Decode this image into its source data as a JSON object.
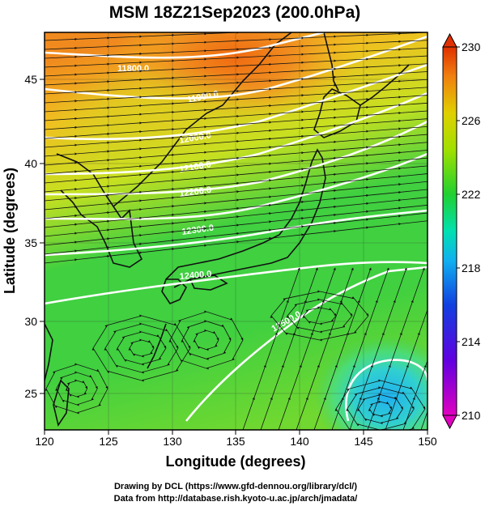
{
  "title": "MSM 18Z21Sep2023 (200.0hPa)",
  "xlabel": "Longitude (degrees)",
  "ylabel": "Latitude  (degrees)",
  "x_ticks": [
    "120",
    "125",
    "130",
    "135",
    "140",
    "145",
    "150"
  ],
  "y_ticks": [
    "25",
    "30",
    "35",
    "40",
    "45"
  ],
  "colorbar": {
    "ticks": [
      "230",
      "226",
      "222",
      "218",
      "214",
      "210"
    ],
    "range": [
      210,
      230
    ],
    "colors": [
      "#d000d0",
      "#2030e0",
      "#10b0ff",
      "#00e0a0",
      "#20d020",
      "#a0e000",
      "#f0b000",
      "#e04000"
    ]
  },
  "contour_labels": [
    "11800.0",
    "11900.0",
    "12000.0",
    "12100.0",
    "12200.0",
    "12300.0",
    "12400.0",
    "12500.0"
  ],
  "credits": {
    "line1": "Drawing by DCL (https://www.gfd-dennou.org/library/dcl/)",
    "line2": "Data from http://database.rish.kyoto-u.ac.jp/arch/jmadata/"
  },
  "map_extent": {
    "lon": [
      120,
      150
    ],
    "lat": [
      22.5,
      47.5
    ]
  }
}
